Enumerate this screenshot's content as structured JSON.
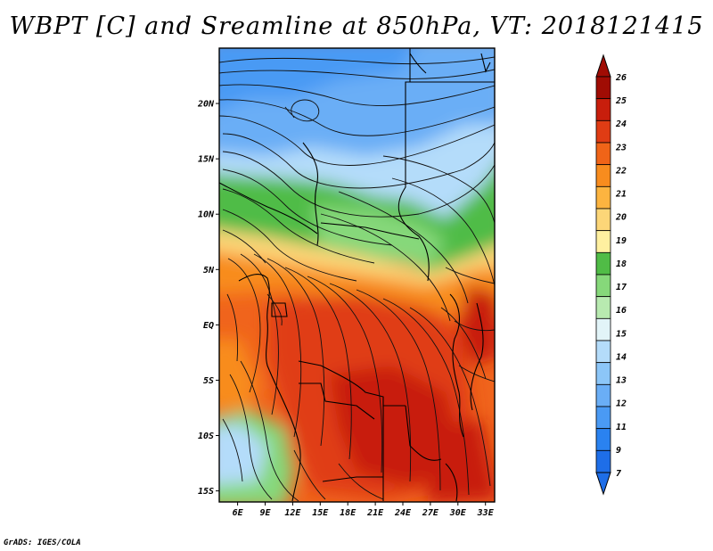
{
  "title": "WBPT [C] and Sreamline at 850hPa, VT: 2018121415",
  "credit": "GrADS: IGES/COLA",
  "map": {
    "lat_labels": [
      "20N",
      "15N",
      "10N",
      "5N",
      "EQ",
      "5S",
      "10S",
      "15S"
    ],
    "lon_labels": [
      "6E",
      "9E",
      "12E",
      "15E",
      "18E",
      "21E",
      "24E",
      "27E",
      "30E",
      "33E"
    ],
    "lat_values": [
      20,
      15,
      10,
      5,
      0,
      -5,
      -10,
      -15
    ],
    "lon_values": [
      6,
      9,
      12,
      15,
      18,
      21,
      24,
      27,
      30,
      33
    ],
    "lon_range": [
      4,
      34
    ],
    "lat_range": [
      -16,
      25
    ]
  },
  "colorbar": {
    "labels": [
      "7",
      "9",
      "11",
      "12",
      "13",
      "14",
      "15",
      "16",
      "17",
      "18",
      "19",
      "20",
      "21",
      "22",
      "23",
      "24",
      "25",
      "26"
    ],
    "colors": [
      "#1e6ee8",
      "#2a82f0",
      "#4a9af4",
      "#6aaef6",
      "#8cc6f8",
      "#b4dcfa",
      "#e2f4f8",
      "#b8eab0",
      "#86d87a",
      "#50bc46",
      "#fff0a0",
      "#fcd678",
      "#fcb440",
      "#f88c1e",
      "#f06418",
      "#e03c14",
      "#c81e0c",
      "#a00c04"
    ]
  }
}
